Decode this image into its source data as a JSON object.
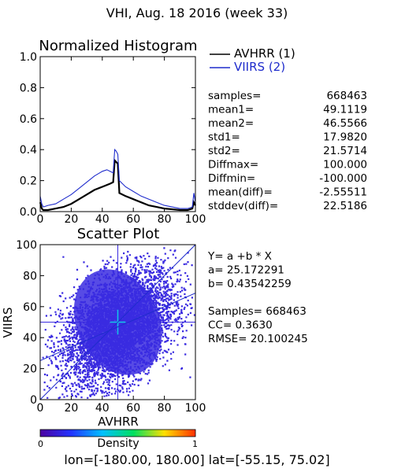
{
  "figure": {
    "title": "VHI,  Aug. 18 2016 (week 33)",
    "footer": "lon=[-180.00, 180.00] lat=[-55.15, 75.02]"
  },
  "colors": {
    "avhrr": "#000000",
    "viirs": "#1f2ccc",
    "scatter": "#3a2be0",
    "scatter_center": "#12c8e8",
    "fit_line": "#1f2ccc",
    "mean_line": "#3a2be0"
  },
  "chart_data": [
    {
      "type": "line",
      "title": "Normalized Histogram",
      "xlim": [
        0,
        100
      ],
      "ylim": [
        0.0,
        1.0
      ],
      "xticks": [
        0,
        20,
        40,
        60,
        80,
        100
      ],
      "yticks": [
        0.0,
        0.2,
        0.4,
        0.6,
        0.8,
        1.0
      ],
      "xtick_labels": [
        "0",
        "20",
        "40",
        "60",
        "80",
        "100"
      ],
      "ytick_labels": [
        "0.0",
        "0.2",
        "0.4",
        "0.6",
        "0.8",
        "1.0"
      ],
      "legend": [
        "AVHRR (1)",
        "VIIRS (2)"
      ],
      "series": [
        {
          "name": "AVHRR (1)",
          "x": [
            0,
            1,
            2,
            5,
            10,
            15,
            20,
            25,
            30,
            35,
            40,
            45,
            47,
            48,
            49,
            50,
            51,
            55,
            60,
            65,
            70,
            75,
            80,
            85,
            90,
            95,
            98,
            99,
            100
          ],
          "y": [
            0.06,
            0.02,
            0.01,
            0.01,
            0.02,
            0.03,
            0.05,
            0.08,
            0.11,
            0.14,
            0.16,
            0.18,
            0.19,
            0.33,
            0.32,
            0.31,
            0.12,
            0.1,
            0.08,
            0.06,
            0.04,
            0.03,
            0.02,
            0.015,
            0.01,
            0.01,
            0.02,
            0.06,
            0.04
          ]
        },
        {
          "name": "VIIRS (2)",
          "x": [
            0,
            1,
            2,
            5,
            10,
            15,
            20,
            25,
            30,
            35,
            40,
            43,
            47,
            48,
            49,
            50,
            51,
            55,
            60,
            65,
            70,
            75,
            80,
            85,
            90,
            95,
            98,
            99,
            100
          ],
          "y": [
            0.1,
            0.05,
            0.03,
            0.04,
            0.05,
            0.08,
            0.11,
            0.15,
            0.19,
            0.23,
            0.26,
            0.27,
            0.25,
            0.4,
            0.39,
            0.37,
            0.2,
            0.16,
            0.13,
            0.1,
            0.08,
            0.06,
            0.04,
            0.03,
            0.02,
            0.02,
            0.03,
            0.12,
            0.06
          ]
        }
      ]
    },
    {
      "type": "scatter",
      "title": "Scatter Plot",
      "xlabel": "AVHRR",
      "ylabel": "VIIRS",
      "xlim": [
        0,
        100
      ],
      "ylim": [
        0,
        100
      ],
      "xticks": [
        0,
        20,
        40,
        60,
        80,
        100
      ],
      "yticks": [
        0,
        20,
        40,
        60,
        80,
        100
      ],
      "xtick_labels": [
        "0",
        "20",
        "40",
        "60",
        "80",
        "100"
      ],
      "ytick_labels": [
        "0",
        "20",
        "40",
        "60",
        "80",
        "100"
      ],
      "fit": {
        "a": 25.172291,
        "b": 0.43542259
      },
      "density_colorbar": {
        "label": "Density",
        "min_label": "0",
        "max_label": "1"
      }
    }
  ],
  "stats": {
    "rows": [
      {
        "label": "samples=",
        "value": "668463"
      },
      {
        "label": "mean1=",
        "value": "49.1119"
      },
      {
        "label": "mean2=",
        "value": "46.5566"
      },
      {
        "label": "std1=",
        "value": "17.9820"
      },
      {
        "label": "std2=",
        "value": "21.5714"
      },
      {
        "label": "Diffmax=",
        "value": "100.000"
      },
      {
        "label": "Diffmin=",
        "value": "-100.000"
      },
      {
        "label": "mean(diff)=",
        "value": "-2.55511"
      },
      {
        "label": "stddev(diff)=",
        "value": "22.5186"
      }
    ]
  },
  "fit_text": {
    "lines": [
      "Y= a +b * X",
      "a= 25.172291",
      "b= 0.43542259",
      "",
      "Samples= 668463",
      "CC=  0.3630",
      "RMSE= 20.100245"
    ]
  }
}
